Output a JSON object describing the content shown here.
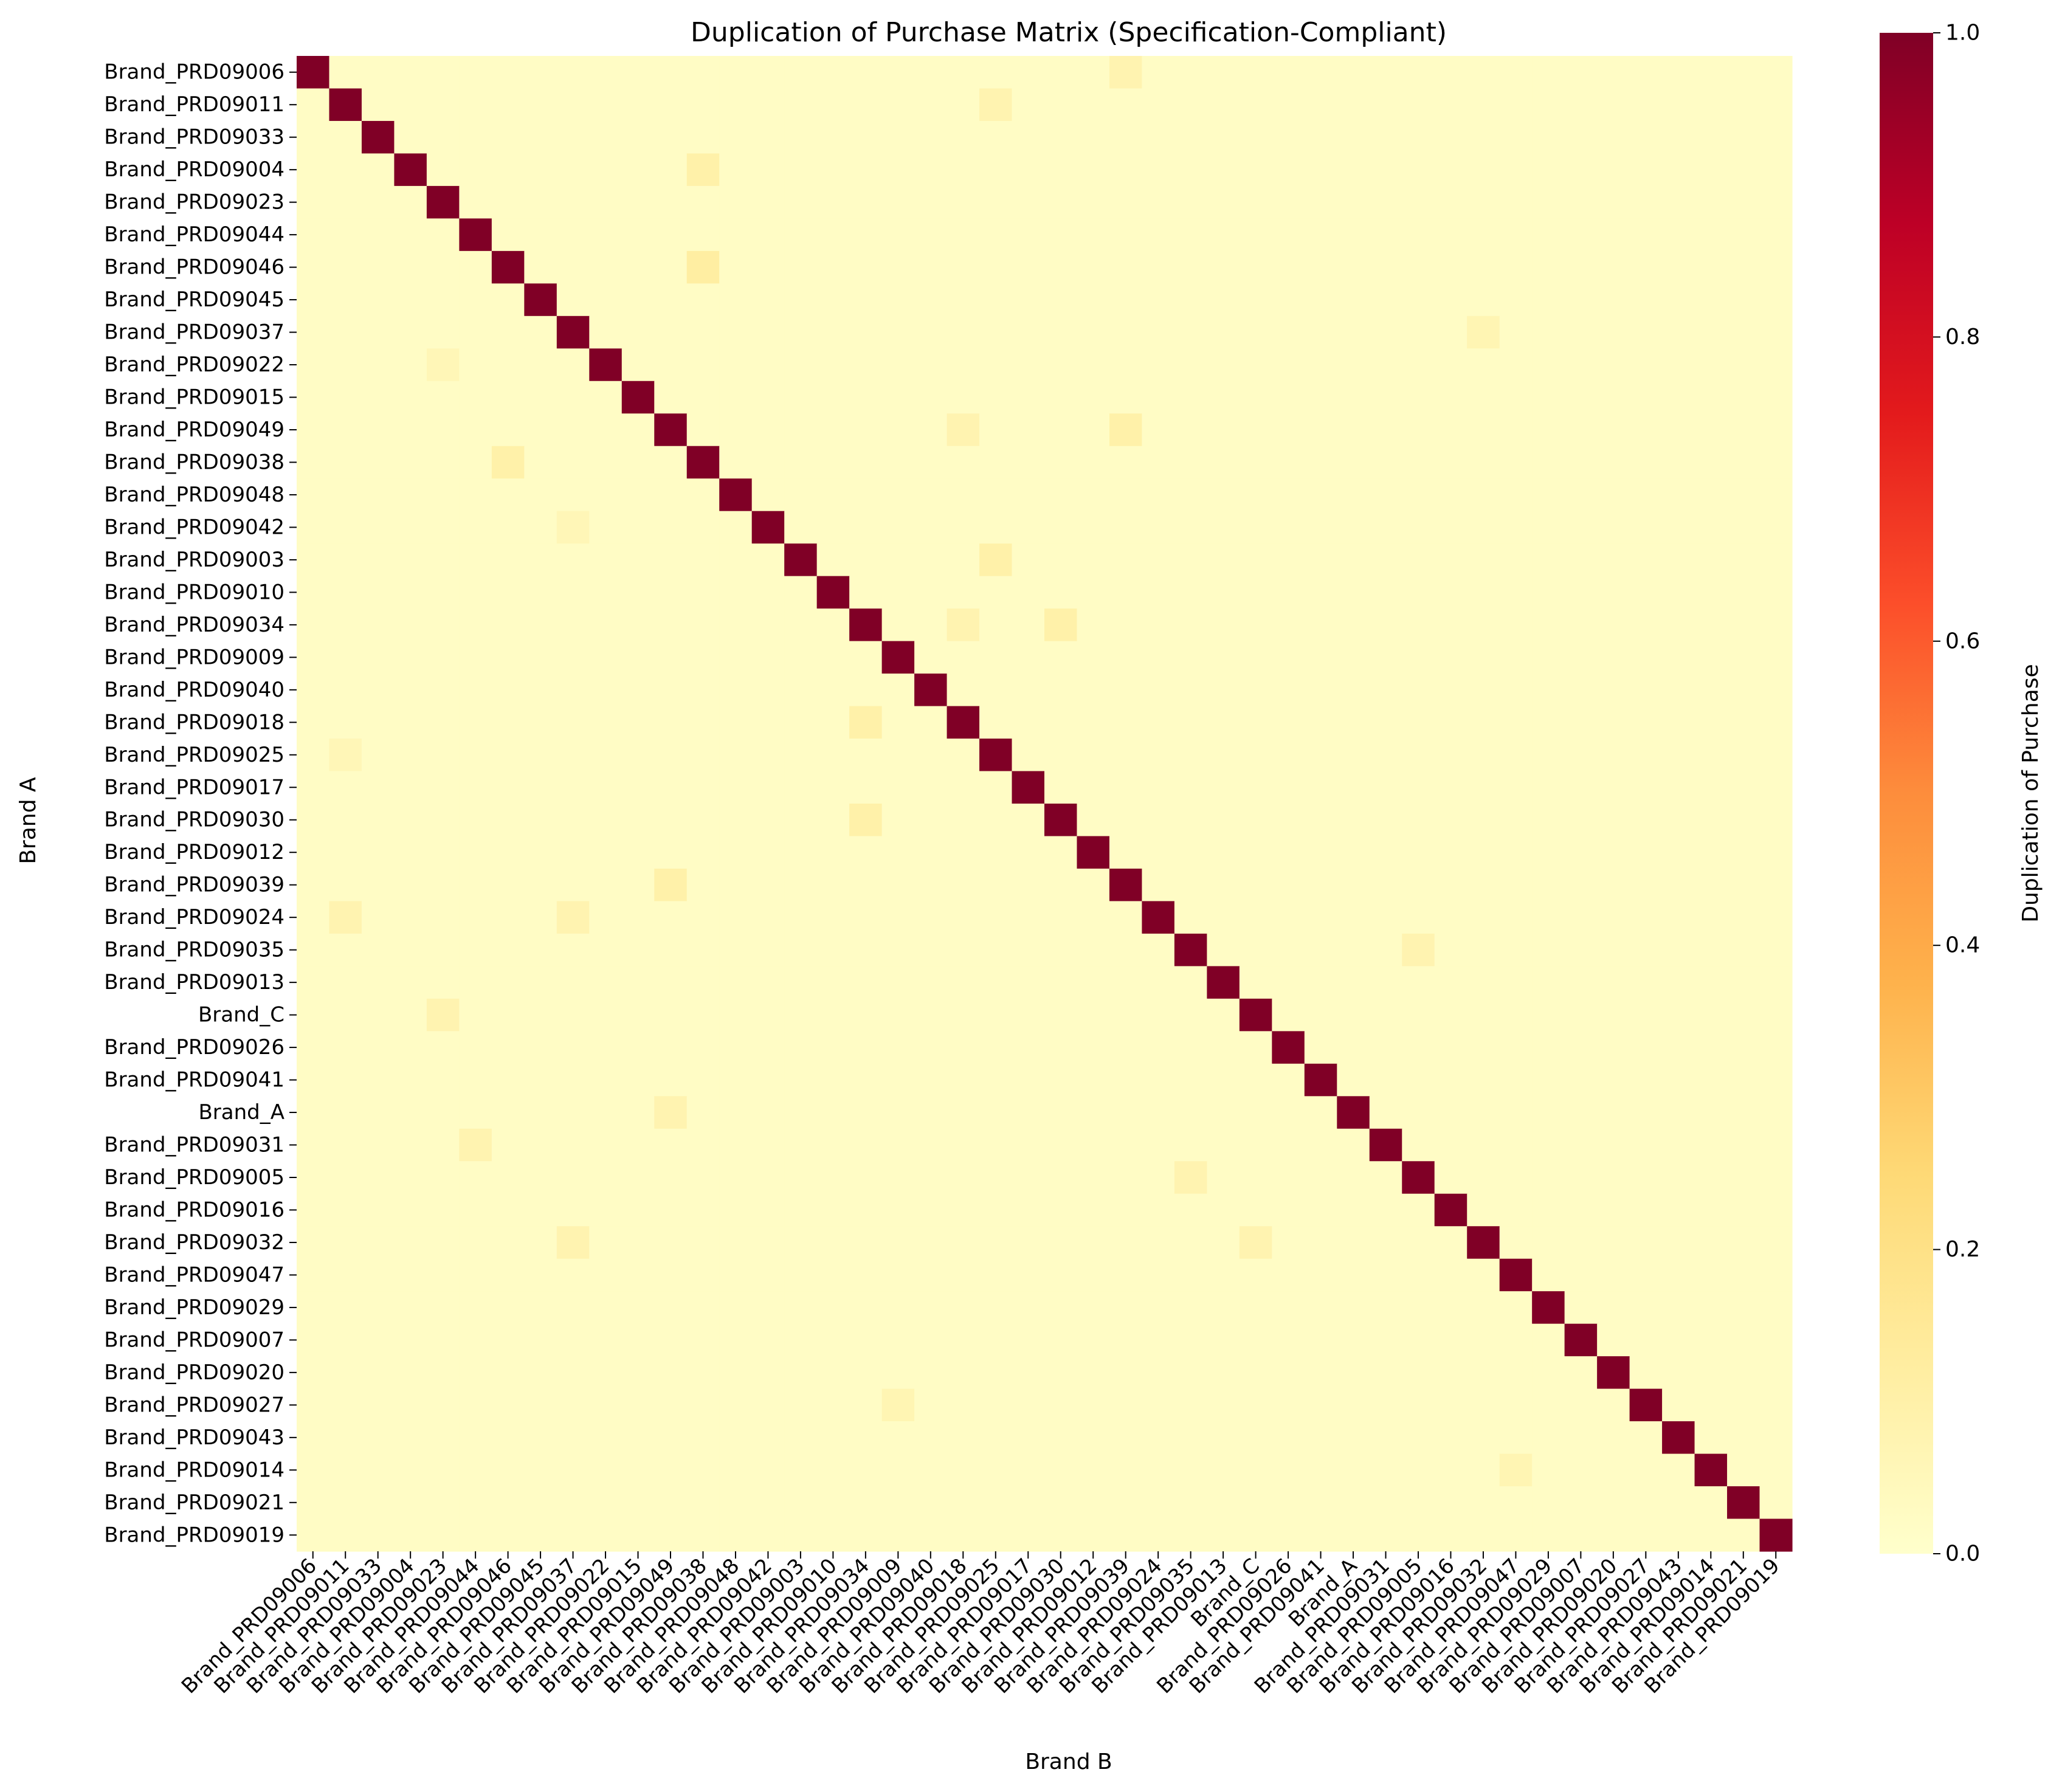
{
  "chart_data": {
    "type": "heatmap",
    "title": "Duplication of Purchase Matrix (Specification-Compliant)",
    "xlabel": "Brand B",
    "ylabel": "Brand A",
    "colorbar_label": "Duplication of Purchase",
    "colormap": "YlOrRd",
    "colormap_stops": [
      "#ffffcc",
      "#ffeda0",
      "#fed976",
      "#feb24c",
      "#fd8d3c",
      "#fc4e2a",
      "#e31a1c",
      "#bd0026",
      "#800026"
    ],
    "vmin": 0.0,
    "vmax": 1.0,
    "colorbar_ticks": [
      "0.0",
      "0.2",
      "0.4",
      "0.6",
      "0.8",
      "1.0"
    ],
    "grid": false,
    "brands": [
      "Brand_PRD09006",
      "Brand_PRD09011",
      "Brand_PRD09033",
      "Brand_PRD09004",
      "Brand_PRD09023",
      "Brand_PRD09044",
      "Brand_PRD09046",
      "Brand_PRD09045",
      "Brand_PRD09037",
      "Brand_PRD09022",
      "Brand_PRD09015",
      "Brand_PRD09049",
      "Brand_PRD09038",
      "Brand_PRD09048",
      "Brand_PRD09042",
      "Brand_PRD09003",
      "Brand_PRD09010",
      "Brand_PRD09034",
      "Brand_PRD09009",
      "Brand_PRD09040",
      "Brand_PRD09018",
      "Brand_PRD09025",
      "Brand_PRD09017",
      "Brand_PRD09030",
      "Brand_PRD09012",
      "Brand_PRD09039",
      "Brand_PRD09024",
      "Brand_PRD09035",
      "Brand_PRD09013",
      "Brand_C",
      "Brand_PRD09026",
      "Brand_PRD09041",
      "Brand_A",
      "Brand_PRD09031",
      "Brand_PRD09005",
      "Brand_PRD09016",
      "Brand_PRD09032",
      "Brand_PRD09047",
      "Brand_PRD09029",
      "Brand_PRD09007",
      "Brand_PRD09020",
      "Brand_PRD09027",
      "Brand_PRD09043",
      "Brand_PRD09014",
      "Brand_PRD09021",
      "Brand_PRD09019"
    ],
    "diagonal_value": 1.0,
    "off_diagonal_typical_value": 0.02,
    "off_diagonal_highlights": [
      {
        "row": "Brand_PRD09011",
        "col": "Brand_PRD09025",
        "value": 0.08
      },
      {
        "row": "Brand_PRD09006",
        "col": "Brand_PRD09039",
        "value": 0.08
      },
      {
        "row": "Brand_PRD09004",
        "col": "Brand_PRD09038",
        "value": 0.1
      },
      {
        "row": "Brand_PRD09046",
        "col": "Brand_PRD09038",
        "value": 0.12
      },
      {
        "row": "Brand_PRD09038",
        "col": "Brand_PRD09046",
        "value": 0.1
      },
      {
        "row": "Brand_PRD09049",
        "col": "Brand_PRD09039",
        "value": 0.1
      },
      {
        "row": "Brand_PRD09049",
        "col": "Brand_PRD09018",
        "value": 0.08
      },
      {
        "row": "Brand_PRD09003",
        "col": "Brand_PRD09025",
        "value": 0.1
      },
      {
        "row": "Brand_PRD09034",
        "col": "Brand_PRD09030",
        "value": 0.1
      },
      {
        "row": "Brand_PRD09034",
        "col": "Brand_PRD09018",
        "value": 0.08
      },
      {
        "row": "Brand_PRD09018",
        "col": "Brand_PRD09034",
        "value": 0.1
      },
      {
        "row": "Brand_PRD09030",
        "col": "Brand_PRD09034",
        "value": 0.1
      },
      {
        "row": "Brand_PRD09039",
        "col": "Brand_PRD09049",
        "value": 0.1
      },
      {
        "row": "Brand_PRD09024",
        "col": "Brand_PRD09011",
        "value": 0.08
      },
      {
        "row": "Brand_PRD09024",
        "col": "Brand_PRD09037",
        "value": 0.08
      },
      {
        "row": "Brand_PRD09035",
        "col": "Brand_PRD09005",
        "value": 0.08
      },
      {
        "row": "Brand_C",
        "col": "Brand_PRD09023",
        "value": 0.08
      },
      {
        "row": "Brand_A",
        "col": "Brand_PRD09049",
        "value": 0.08
      },
      {
        "row": "Brand_PRD09031",
        "col": "Brand_PRD09044",
        "value": 0.08
      },
      {
        "row": "Brand_PRD09005",
        "col": "Brand_PRD09035",
        "value": 0.08
      },
      {
        "row": "Brand_PRD09032",
        "col": "Brand_PRD09037",
        "value": 0.08
      },
      {
        "row": "Brand_PRD09032",
        "col": "Brand_C",
        "value": 0.08
      },
      {
        "row": "Brand_PRD09027",
        "col": "Brand_PRD09009",
        "value": 0.07
      },
      {
        "row": "Brand_PRD09014",
        "col": "Brand_PRD09047",
        "value": 0.07
      },
      {
        "row": "Brand_PRD09037",
        "col": "Brand_PRD09032",
        "value": 0.07
      },
      {
        "row": "Brand_PRD09022",
        "col": "Brand_PRD09023",
        "value": 0.06
      },
      {
        "row": "Brand_PRD09025",
        "col": "Brand_PRD09011",
        "value": 0.06
      },
      {
        "row": "Brand_PRD09042",
        "col": "Brand_PRD09037",
        "value": 0.06
      }
    ]
  }
}
